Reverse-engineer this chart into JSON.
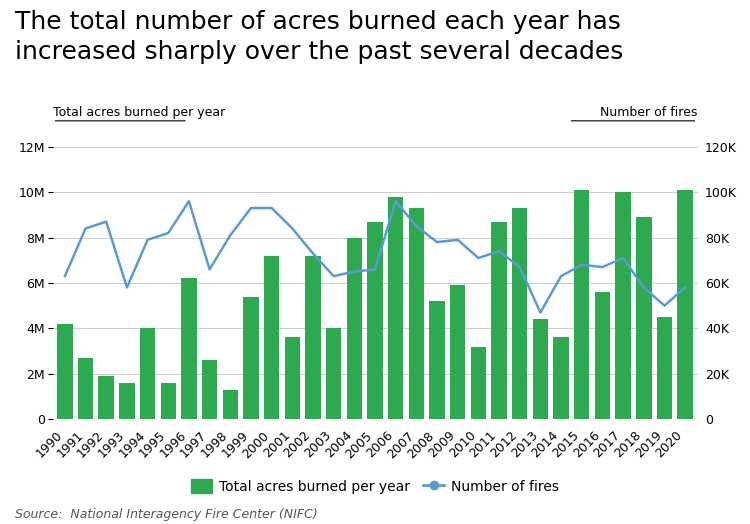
{
  "title": "The total number of acres burned each year has\nincreased sharply over the past several decades",
  "source": "Source:  National Interagency Fire Center (NIFC)",
  "ylabel_left": "Total acres burned per year",
  "ylabel_right": "Number of fires",
  "background_color": "#ffffff",
  "years": [
    1990,
    1991,
    1992,
    1993,
    1994,
    1995,
    1996,
    1997,
    1998,
    1999,
    2000,
    2001,
    2002,
    2003,
    2004,
    2005,
    2006,
    2007,
    2008,
    2009,
    2010,
    2011,
    2012,
    2013,
    2014,
    2015,
    2016,
    2017,
    2018,
    2019,
    2020
  ],
  "acres_burned": [
    4200000,
    2700000,
    1900000,
    1600000,
    4000000,
    1600000,
    6200000,
    2600000,
    1300000,
    5400000,
    7200000,
    3600000,
    7200000,
    4000000,
    8000000,
    8700000,
    9800000,
    9300000,
    5200000,
    5900000,
    3200000,
    8700000,
    9300000,
    4400000,
    3600000,
    10100000,
    5600000,
    10000000,
    8900000,
    4500000,
    10100000
  ],
  "num_fires": [
    63000,
    84000,
    87000,
    58000,
    79000,
    82000,
    96000,
    66000,
    81000,
    93000,
    93000,
    84000,
    73000,
    63000,
    65000,
    66000,
    96000,
    85000,
    78000,
    79000,
    71000,
    74000,
    67000,
    47000,
    63000,
    68000,
    67000,
    71000,
    58000,
    50000,
    58000
  ],
  "bar_color": "#2daa4f",
  "line_color": "#5b9bd5",
  "ylim_left": [
    0,
    12000000
  ],
  "ylim_right": [
    0,
    120000
  ],
  "yticks_left": [
    0,
    2000000,
    4000000,
    6000000,
    8000000,
    10000000,
    12000000
  ],
  "ytick_labels_left": [
    "0",
    "2M",
    "4M",
    "6M",
    "8M",
    "10M",
    "12M"
  ],
  "yticks_right": [
    0,
    20000,
    40000,
    60000,
    80000,
    100000,
    120000
  ],
  "ytick_labels_right": [
    "0",
    "20K",
    "40K",
    "60K",
    "80K",
    "100K",
    "120K"
  ],
  "title_fontsize": 18,
  "axis_label_fontsize": 9,
  "tick_fontsize": 9,
  "legend_fontsize": 10,
  "source_fontsize": 9
}
